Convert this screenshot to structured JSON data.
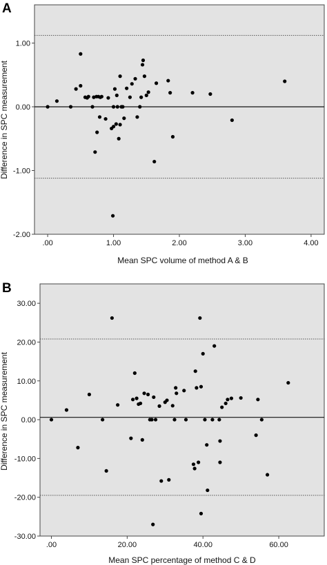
{
  "chart_data": [
    {
      "panel_label": "A",
      "type": "scatter",
      "xlabel": "Mean SPC volume of method A & B",
      "ylabel": "Difference in SPC measurement",
      "xlim": [
        -0.2,
        4.2
      ],
      "ylim": [
        -2.0,
        1.6
      ],
      "x_ticks": [
        0.0,
        1.0,
        2.0,
        3.0,
        4.0
      ],
      "x_tick_labels": [
        ".00",
        "1.00",
        "2.00",
        "3.00",
        "4.00"
      ],
      "y_ticks": [
        1.0,
        0.0,
        -1.0,
        -2.0
      ],
      "y_tick_labels": [
        "1.00",
        "0.00",
        "-1.00",
        "-2.00"
      ],
      "reference_lines": {
        "mean": 0.0,
        "upper_limit": 1.12,
        "lower_limit": -1.12
      },
      "grid": false,
      "background_color": "#e3e3e3",
      "point_color": "#000000",
      "points": [
        [
          0.0,
          0.0
        ],
        [
          0.14,
          0.09
        ],
        [
          0.35,
          0.0
        ],
        [
          0.43,
          0.28
        ],
        [
          0.5,
          0.83
        ],
        [
          0.5,
          0.33
        ],
        [
          0.57,
          0.15
        ],
        [
          0.6,
          0.14
        ],
        [
          0.62,
          0.16
        ],
        [
          0.68,
          0.0
        ],
        [
          0.7,
          0.15
        ],
        [
          0.72,
          -0.71
        ],
        [
          0.74,
          0.16
        ],
        [
          0.75,
          -0.4
        ],
        [
          0.77,
          0.16
        ],
        [
          0.79,
          -0.16
        ],
        [
          0.8,
          0.15
        ],
        [
          0.82,
          0.16
        ],
        [
          0.88,
          -0.19
        ],
        [
          0.92,
          0.14
        ],
        [
          0.97,
          -0.34
        ],
        [
          1.0,
          -0.31
        ],
        [
          1.0,
          0.0
        ],
        [
          1.02,
          0.28
        ],
        [
          1.04,
          -0.27
        ],
        [
          1.05,
          0.18
        ],
        [
          1.06,
          0.0
        ],
        [
          1.08,
          -0.5
        ],
        [
          1.1,
          0.48
        ],
        [
          1.1,
          -0.28
        ],
        [
          1.12,
          0.0
        ],
        [
          1.14,
          0.0
        ],
        [
          1.16,
          -0.18
        ],
        [
          1.2,
          0.29
        ],
        [
          1.25,
          0.15
        ],
        [
          1.28,
          0.36
        ],
        [
          1.33,
          0.44
        ],
        [
          1.36,
          -0.16
        ],
        [
          1.4,
          0.0
        ],
        [
          1.42,
          0.15
        ],
        [
          1.44,
          0.66
        ],
        [
          1.45,
          0.73
        ],
        [
          1.47,
          0.48
        ],
        [
          1.5,
          0.18
        ],
        [
          1.53,
          0.23
        ],
        [
          1.62,
          -0.86
        ],
        [
          1.65,
          0.37
        ],
        [
          1.83,
          0.41
        ],
        [
          1.86,
          0.22
        ],
        [
          1.9,
          -0.47
        ],
        [
          2.2,
          0.22
        ],
        [
          2.47,
          0.2
        ],
        [
          2.8,
          -0.21
        ],
        [
          3.6,
          0.4
        ],
        [
          0.99,
          -1.71
        ]
      ]
    },
    {
      "panel_label": "B",
      "type": "scatter",
      "xlabel": "Mean SPC percentage of method C & D",
      "ylabel": "Difference in SPC measurement",
      "xlim": [
        -3,
        72
      ],
      "ylim": [
        -30,
        35
      ],
      "x_ticks": [
        0,
        20,
        40,
        60
      ],
      "x_tick_labels": [
        ".00",
        "20.00",
        "40.00",
        "60.00"
      ],
      "y_ticks": [
        30,
        20,
        10,
        0,
        -10,
        -20,
        -30
      ],
      "y_tick_labels": [
        "30.00",
        "20.00",
        "10.00",
        "0.00",
        "-10.00",
        "-20.00",
        "-30.00"
      ],
      "reference_lines": {
        "mean": 0.6,
        "upper_limit": 20.8,
        "lower_limit": -19.5
      },
      "grid": false,
      "background_color": "#e3e3e3",
      "point_color": "#000000",
      "points": [
        [
          0.0,
          0.0
        ],
        [
          4.0,
          2.5
        ],
        [
          7.0,
          -7.2
        ],
        [
          10.0,
          6.5
        ],
        [
          13.5,
          0.0
        ],
        [
          14.5,
          -13.2
        ],
        [
          16.0,
          26.2
        ],
        [
          17.5,
          3.8
        ],
        [
          21.0,
          -4.8
        ],
        [
          21.5,
          5.2
        ],
        [
          22.0,
          12.0
        ],
        [
          22.5,
          5.5
        ],
        [
          23.0,
          4.0
        ],
        [
          23.5,
          4.2
        ],
        [
          24.0,
          -5.2
        ],
        [
          24.5,
          6.8
        ],
        [
          25.5,
          6.5
        ],
        [
          26.0,
          0.0
        ],
        [
          26.5,
          0.0
        ],
        [
          26.8,
          -27.0
        ],
        [
          27.0,
          5.8
        ],
        [
          27.5,
          0.0
        ],
        [
          28.5,
          3.5
        ],
        [
          29.0,
          -15.8
        ],
        [
          30.0,
          4.5
        ],
        [
          30.5,
          5.0
        ],
        [
          31.0,
          -15.5
        ],
        [
          32.0,
          3.6
        ],
        [
          32.5,
          0.0
        ],
        [
          32.8,
          8.2
        ],
        [
          33.0,
          6.8
        ],
        [
          35.0,
          7.5
        ],
        [
          35.5,
          0.0
        ],
        [
          37.5,
          -11.5
        ],
        [
          37.8,
          -12.6
        ],
        [
          38.0,
          12.5
        ],
        [
          38.3,
          8.2
        ],
        [
          38.8,
          -11.0
        ],
        [
          39.2,
          26.2
        ],
        [
          39.5,
          8.5
        ],
        [
          39.5,
          -24.2
        ],
        [
          40.0,
          17.0
        ],
        [
          40.5,
          0.0
        ],
        [
          41.0,
          -6.5
        ],
        [
          41.2,
          -18.2
        ],
        [
          42.5,
          0.0
        ],
        [
          43.0,
          19.0
        ],
        [
          44.5,
          -11.0
        ],
        [
          44.5,
          -5.5
        ],
        [
          45.0,
          3.2
        ],
        [
          46.0,
          4.2
        ],
        [
          46.5,
          5.2
        ],
        [
          47.5,
          5.5
        ],
        [
          50.0,
          5.6
        ],
        [
          54.0,
          -4.0
        ],
        [
          54.5,
          5.2
        ],
        [
          55.5,
          0.0
        ],
        [
          57.0,
          -14.2
        ],
        [
          62.5,
          9.5
        ],
        [
          44.3,
          0.0
        ]
      ]
    }
  ]
}
